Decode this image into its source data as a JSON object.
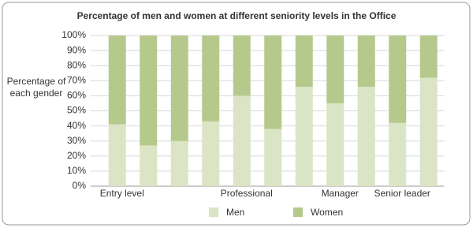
{
  "chart_data": {
    "type": "stacked_bar",
    "title": "Percentage of men and women at different seniority levels in the Office",
    "y_label": "Percentage of each gender",
    "categories": [
      "Entry level",
      null,
      null,
      null,
      "Professional",
      null,
      null,
      "Manager",
      null,
      "Senior leader",
      null
    ],
    "series": [
      {
        "name": "Men",
        "color": "#dbe4c4",
        "values": [
          41,
          27,
          30,
          43,
          60,
          38,
          66,
          55,
          66,
          42,
          72
        ]
      },
      {
        "name": "Women",
        "color": "#b6c98c",
        "values": [
          59,
          73,
          70,
          57,
          40,
          62,
          34,
          45,
          34,
          58,
          28
        ]
      }
    ],
    "ylim": [
      0,
      100
    ],
    "yticks": [
      {
        "value": 0,
        "label": "0%"
      },
      {
        "value": 10,
        "label": "10%"
      },
      {
        "value": 20,
        "label": "20%"
      },
      {
        "value": 30,
        "label": "30%"
      },
      {
        "value": 40,
        "label": "40%"
      },
      {
        "value": 50,
        "label": "50%"
      },
      {
        "value": 60,
        "label": "60%"
      },
      {
        "value": 70,
        "label": "70%"
      },
      {
        "value": 80,
        "label": "80%"
      },
      {
        "value": 90,
        "label": "90%"
      },
      {
        "value": 100,
        "label": "100%"
      }
    ],
    "grid": true,
    "legend": "bottom"
  }
}
